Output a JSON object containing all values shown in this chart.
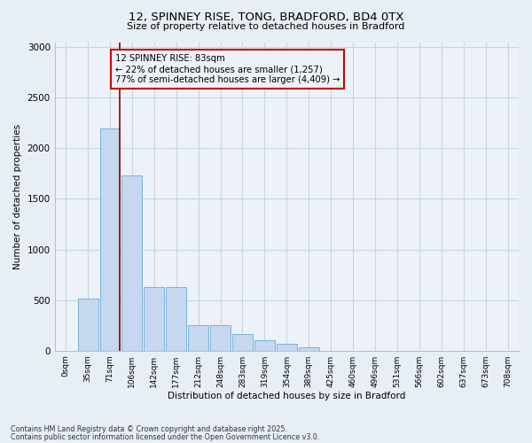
{
  "title1": "12, SPINNEY RISE, TONG, BRADFORD, BD4 0TX",
  "title2": "Size of property relative to detached houses in Bradford",
  "xlabel": "Distribution of detached houses by size in Bradford",
  "ylabel": "Number of detached properties",
  "categories": [
    "0sqm",
    "35sqm",
    "71sqm",
    "106sqm",
    "142sqm",
    "177sqm",
    "212sqm",
    "248sqm",
    "283sqm",
    "319sqm",
    "354sqm",
    "389sqm",
    "425sqm",
    "460sqm",
    "496sqm",
    "531sqm",
    "566sqm",
    "602sqm",
    "637sqm",
    "673sqm",
    "708sqm"
  ],
  "bar_heights": [
    0,
    510,
    2200,
    1730,
    630,
    630,
    250,
    250,
    160,
    100,
    70,
    30,
    0,
    0,
    0,
    0,
    0,
    0,
    0,
    0,
    0
  ],
  "bar_color": "#c5d8f0",
  "bar_edge_color": "#6aaad4",
  "vline_x_idx": 2,
  "vline_color": "#8b0000",
  "annotation_text": "12 SPINNEY RISE: 83sqm\n← 22% of detached houses are smaller (1,257)\n77% of semi-detached houses are larger (4,409) →",
  "annotation_box_color": "#cc0000",
  "ylim": [
    0,
    3050
  ],
  "yticks": [
    0,
    500,
    1000,
    1500,
    2000,
    2500,
    3000
  ],
  "fig_background_color": "#e8eef5",
  "plot_background_color": "#edf2f8",
  "grid_color": "#c8d4e0",
  "footer1": "Contains HM Land Registry data © Crown copyright and database right 2025.",
  "footer2": "Contains public sector information licensed under the Open Government Licence v3.0."
}
